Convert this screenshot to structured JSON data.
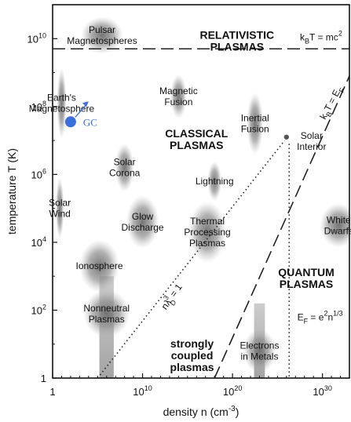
{
  "chart_data": {
    "type": "scatter",
    "title": "",
    "xlabel": "density n (cm",
    "xlabel_exp": "-3",
    "xlabel_close": ")",
    "ylabel": "temperature T (K)",
    "xscale": "log",
    "yscale": "log",
    "xlim_log10": [
      0,
      33
    ],
    "ylim_log10": [
      0,
      11
    ],
    "x_ticks": [
      {
        "log10": 0,
        "base": "1",
        "exp": ""
      },
      {
        "log10": 10,
        "base": "10",
        "exp": "10"
      },
      {
        "log10": 20,
        "base": "10",
        "exp": "20"
      },
      {
        "log10": 30,
        "base": "10",
        "exp": "30"
      }
    ],
    "y_ticks": [
      {
        "log10": 0,
        "base": "1",
        "exp": ""
      },
      {
        "log10": 2,
        "base": "10",
        "exp": "2"
      },
      {
        "log10": 4,
        "base": "10",
        "exp": "4"
      },
      {
        "log10": 6,
        "base": "10",
        "exp": "6"
      },
      {
        "log10": 8,
        "base": "10",
        "exp": "8"
      },
      {
        "log10": 10,
        "base": "10",
        "exp": "10"
      }
    ],
    "regions": [
      {
        "lines": [
          "RELATIVISTIC",
          "PLASMAS"
        ],
        "log_n": 20.5,
        "log_T": 10.0
      },
      {
        "lines": [
          "CLASSICAL",
          "PLASMAS"
        ],
        "log_n": 16.0,
        "log_T": 7.1
      },
      {
        "lines": [
          "QUANTUM",
          "PLASMAS"
        ],
        "log_n": 28.2,
        "log_T": 3.0
      },
      {
        "lines": [
          "strongly",
          "coupled",
          "plasmas"
        ],
        "log_n": 15.5,
        "log_T": 0.9
      }
    ],
    "plasmas": [
      {
        "lines": [
          "Pulsar",
          "Magnetospheres"
        ],
        "log_n": 5.5,
        "log_T": 10.1,
        "rx": 1.8,
        "ry": 0.42
      },
      {
        "lines": [
          "Earth's",
          "Magnetosphere"
        ],
        "log_n": 1.0,
        "log_T": 8.1,
        "rx": 0.4,
        "ry": 0.8
      },
      {
        "lines": [
          "Magnetic",
          "Fusion"
        ],
        "log_n": 14.0,
        "log_T": 8.3,
        "rx": 0.7,
        "ry": 0.5
      },
      {
        "lines": [
          "Inertial",
          "Fusion"
        ],
        "log_n": 22.5,
        "log_T": 7.5,
        "rx": 0.7,
        "ry": 0.7
      },
      {
        "lines": [
          "Solar",
          "Corona"
        ],
        "log_n": 8.0,
        "log_T": 6.2,
        "rx": 0.8,
        "ry": 0.55
      },
      {
        "lines": [
          "Lightning"
        ],
        "log_n": 18.0,
        "log_T": 5.8,
        "rx": 0.6,
        "ry": 0.45
      },
      {
        "lines": [
          "Solar",
          "Wind"
        ],
        "log_n": 0.8,
        "log_T": 5.0,
        "rx": 0.35,
        "ry": 0.7
      },
      {
        "lines": [
          "Glow",
          "Discharge"
        ],
        "log_n": 10.0,
        "log_T": 4.6,
        "rx": 1.4,
        "ry": 0.6
      },
      {
        "lines": [
          "Thermal",
          "Processing",
          "Plasmas"
        ],
        "log_n": 17.2,
        "log_T": 4.3,
        "rx": 1.6,
        "ry": 0.7
      },
      {
        "lines": [
          "White",
          "Dwarfs"
        ],
        "log_n": 31.8,
        "log_T": 4.5,
        "rx": 1.6,
        "ry": 0.5
      },
      {
        "lines": [
          "Ionosphere"
        ],
        "log_n": 5.2,
        "log_T": 3.3,
        "rx": 1.7,
        "ry": 0.6
      },
      {
        "lines": [
          "Nonneutral",
          "Plasmas"
        ],
        "log_n": 6.0,
        "log_T": 1.9,
        "rx": 2.0,
        "ry": 0.55
      },
      {
        "lines": [
          "Electrons",
          "in Metals"
        ],
        "log_n": 23.0,
        "log_T": 0.8,
        "rx": 1.4,
        "ry": 0.5
      }
    ],
    "lines": [
      {
        "name": "relativistic",
        "lhs": "k",
        "lhs_sub": "B",
        "rhs": "T = mc",
        "rhs_sup": "2"
      },
      {
        "name": "fermi",
        "lhs": "k",
        "lhs_sub": "B",
        "rhs": "T = E",
        "rhs_sub": "F"
      },
      {
        "name": "debye",
        "text": "nλ",
        "text_sub": "D",
        "text_sup": "3",
        "tail": " = 1"
      },
      {
        "name": "fermi-energy",
        "lhs": "E",
        "lhs_sub": "F",
        "rhs": " = e",
        "rhs_sup": "2",
        "tail": "n",
        "tail_sup": "1/3"
      }
    ],
    "solar_interior": {
      "lines": [
        "Solar",
        "Interior"
      ],
      "log_n": 26.0,
      "log_T": 7.1
    },
    "annotation": {
      "text": "GC",
      "color": "#3a6fe0"
    },
    "colors": {
      "blob": "#8a8a8a",
      "ink": "#111111",
      "marker": "#3a6fe0"
    }
  }
}
